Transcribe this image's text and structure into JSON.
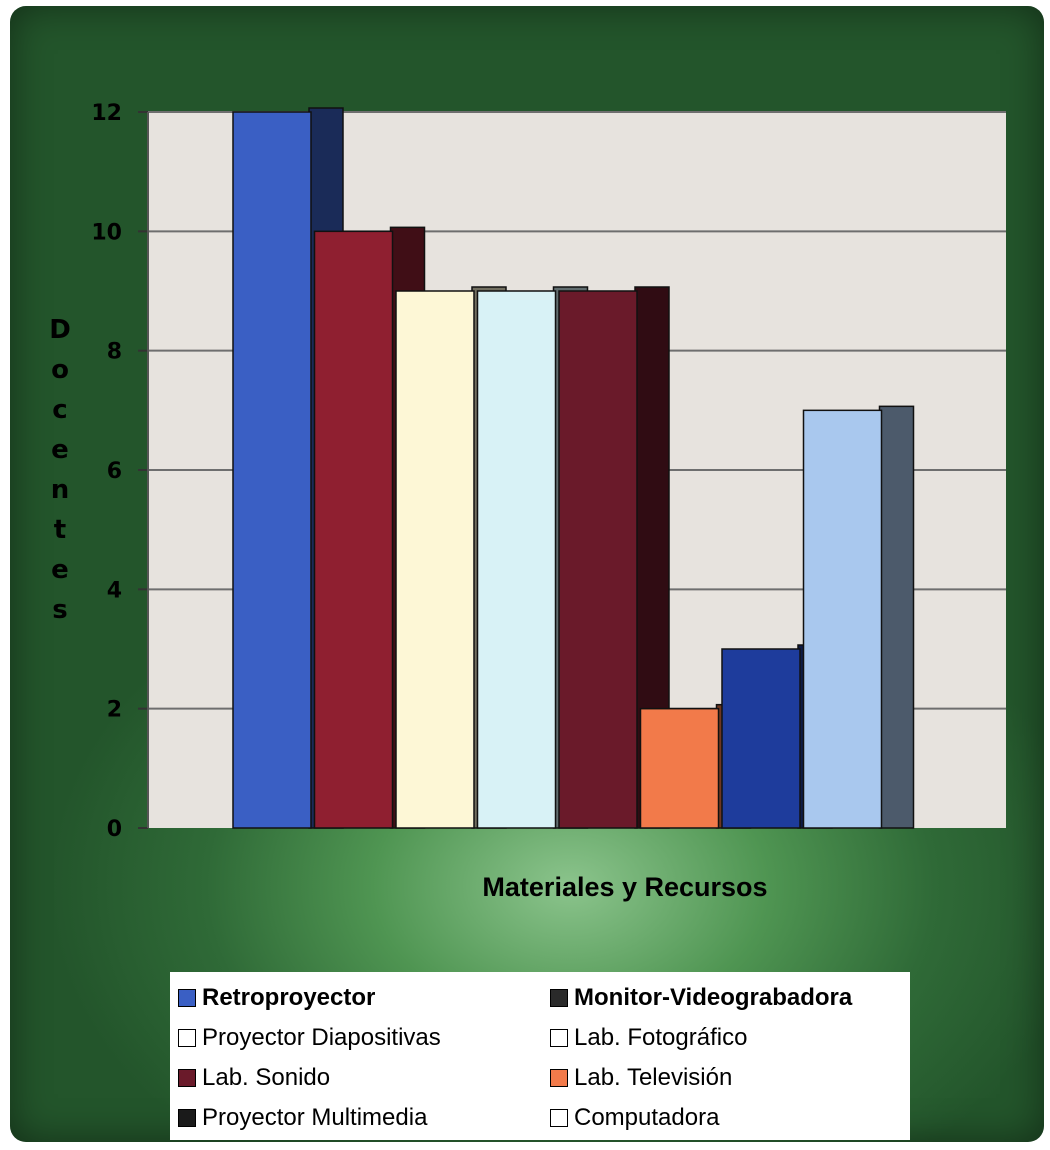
{
  "chart_data": {
    "type": "bar",
    "title": "",
    "xlabel": "Materiales y Recursos",
    "ylabel": "Docentes",
    "ylim": [
      0,
      12
    ],
    "yticks": [
      "0",
      "2",
      "4",
      "6",
      "8",
      "10",
      "12"
    ],
    "grid": true,
    "legend_position": "bottom",
    "categories": [
      "Retroproyector",
      "Monitor-Videograbadora",
      "Proyector Diapositivas",
      "Lab. Fotográfico",
      "Lab. Sonido",
      "Lab. Televisión",
      "Proyector Multimedia",
      "Computadora"
    ],
    "values": [
      12,
      10,
      9,
      9,
      9,
      2,
      3,
      7
    ],
    "colors": [
      "#3a5fc4",
      "#8f1f30",
      "#fdf7d6",
      "#d8f2f6",
      "#6a1a2a",
      "#f27a4a",
      "#1e3c9c",
      "#a9c8ee"
    ]
  },
  "legend": {
    "items": [
      {
        "label": "Retroproyector",
        "color": "#3a5fc4",
        "bold": true
      },
      {
        "label": "Monitor-Videograbadora",
        "color": "#2a2a2a",
        "bold": true
      },
      {
        "label": "Proyector Diapositivas",
        "color": "#ffffff",
        "bold": false
      },
      {
        "label": "Lab. Fotográfico",
        "color": "#ffffff",
        "bold": false
      },
      {
        "label": "Lab. Sonido",
        "color": "#6a1a2a",
        "bold": false
      },
      {
        "label": "Lab. Televisión",
        "color": "#f27a4a",
        "bold": false
      },
      {
        "label": "Proyector Multimedia",
        "color": "#1a1a1a",
        "bold": false
      },
      {
        "label": "Computadora",
        "color": "#ffffff",
        "bold": false
      }
    ]
  }
}
